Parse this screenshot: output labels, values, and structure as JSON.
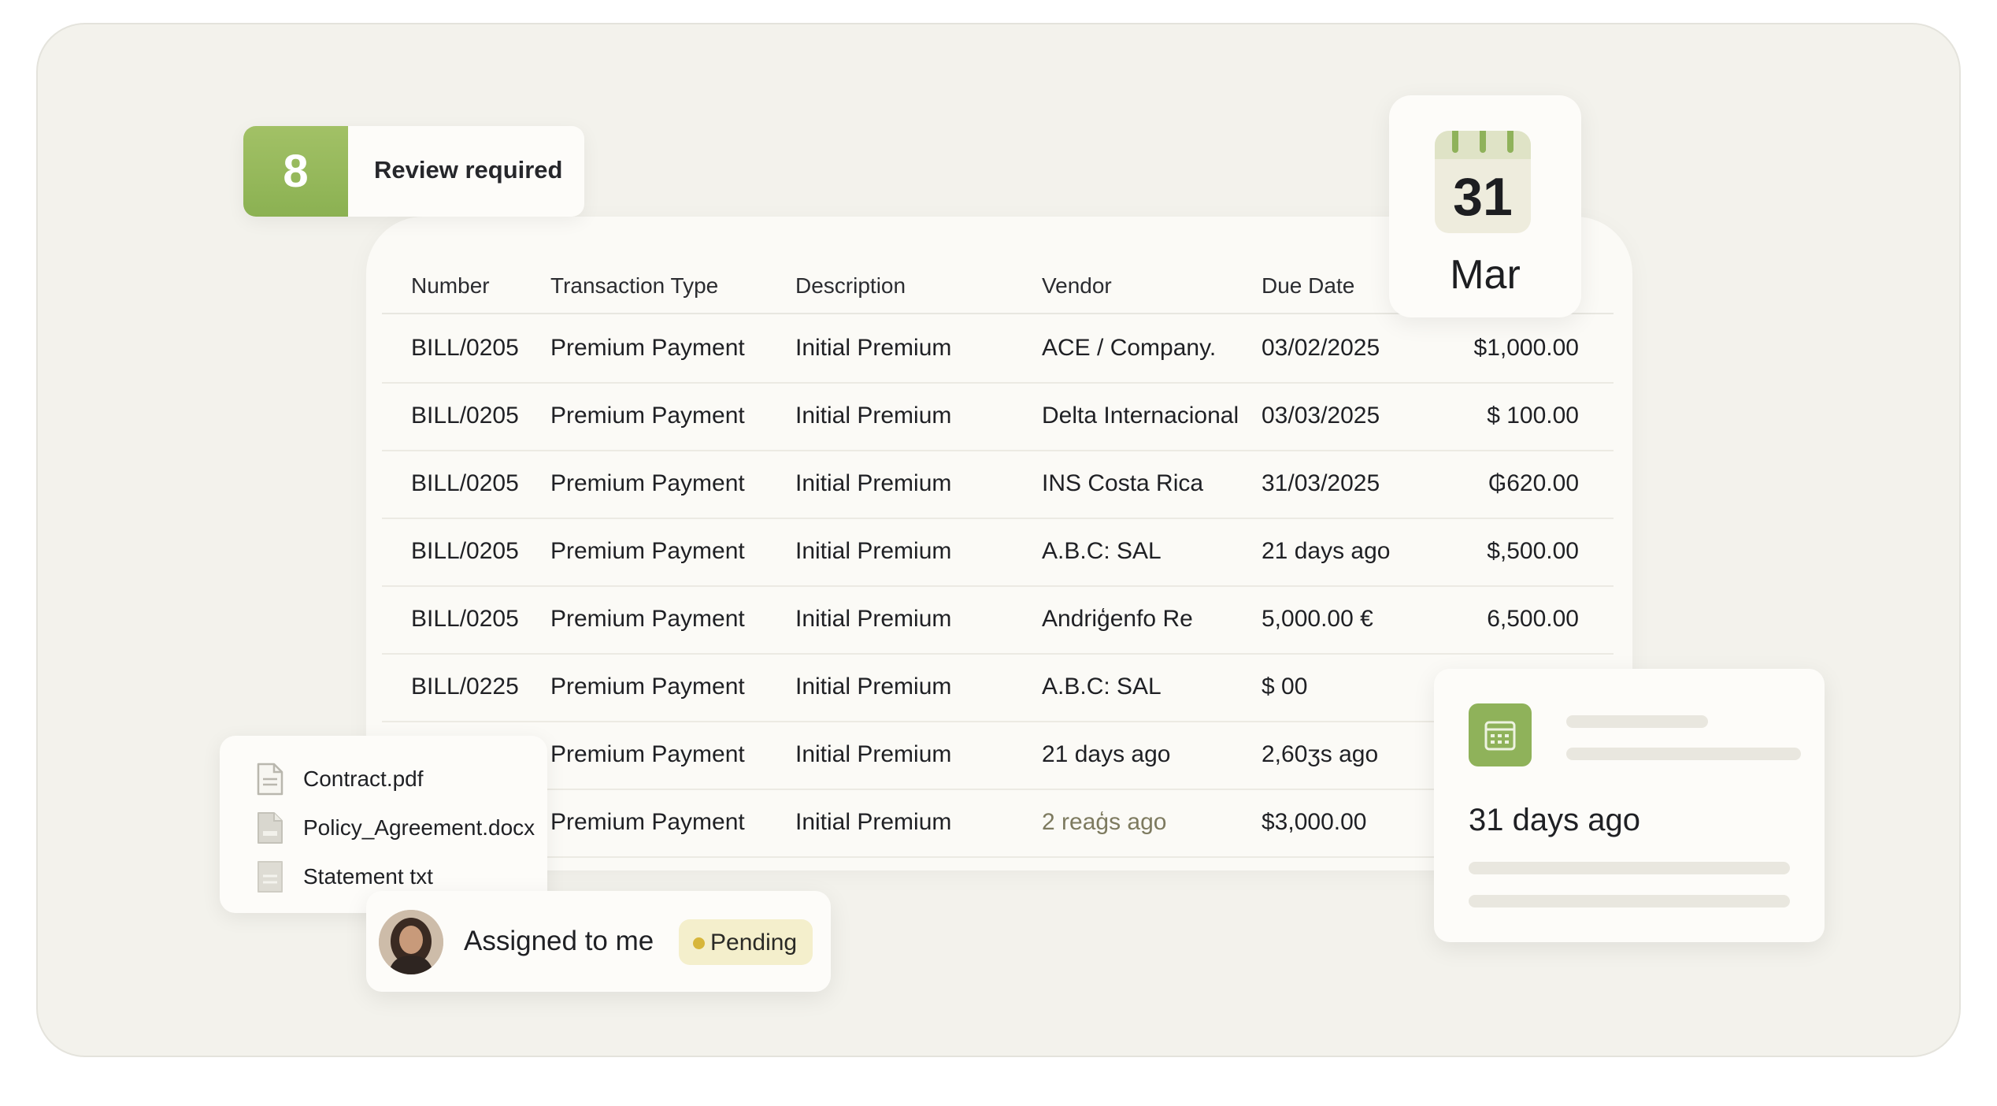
{
  "review": {
    "count": "8",
    "label": "Review required"
  },
  "date_card": {
    "day": "31",
    "month": "Mar"
  },
  "table": {
    "columns": [
      "Number",
      "Transaction Type",
      "Description",
      "Vendor",
      "Due Date"
    ],
    "rows": [
      {
        "number": "BILL/0205",
        "type": "Premium Payment",
        "description": "Initial Premium",
        "vendor": "ACE / Company.",
        "due": "03/02/2025",
        "amount": "$1,000.00"
      },
      {
        "number": "BILL/0205",
        "type": "Premium Payment",
        "description": "Initial Premium",
        "vendor": "Delta Internacional",
        "due": "03/03/2025",
        "amount": "$ 100.00"
      },
      {
        "number": "BILL/0205",
        "type": "Premium Payment",
        "description": "Initial Premium",
        "vendor": "INS Costa Rica",
        "due": "31/03/2025",
        "amount": "₲620.00"
      },
      {
        "number": "BILL/0205",
        "type": "Premium Payment",
        "description": "Initial Premium",
        "vendor": "A.B.C: SAL",
        "due": "21 days ago",
        "amount": "$,500.00"
      },
      {
        "number": "BILL/0205",
        "type": "Premium Payment",
        "description": "Initial Premium",
        "vendor": "Andriģenfo Re",
        "due": "5,000.00 €",
        "amount": "6,500.00"
      },
      {
        "number": "BILL/0225",
        "type": "Premium Payment",
        "description": "Initial Premium",
        "vendor": "A.B.C: SAL",
        "due": "$ 00",
        "amount": ""
      },
      {
        "number": "",
        "type": "Premium Payment",
        "description": "Initial Premium",
        "vendor": "21 days ago",
        "due": "2,60ʒs ago",
        "amount": ""
      },
      {
        "number": "",
        "type": "Premium Payment",
        "description": "Initial Premium",
        "vendor": "2 reaģs ago",
        "due": "$3,000.00",
        "amount": ""
      }
    ]
  },
  "files": [
    {
      "name": "Contract.pdf",
      "icon": "pdf-file-icon"
    },
    {
      "name": "Policy_Agreement.docx",
      "icon": "doc-file-icon"
    },
    {
      "name": "Statement txt",
      "icon": "text-file-icon"
    }
  ],
  "assigned": {
    "label": "Assigned to me",
    "status": "Pending"
  },
  "activity": {
    "text": "31  days ago"
  },
  "colors": {
    "accent_green": "#8fb25a",
    "pending_bg": "#f4efcc",
    "pending_dot": "#d7b63a"
  }
}
